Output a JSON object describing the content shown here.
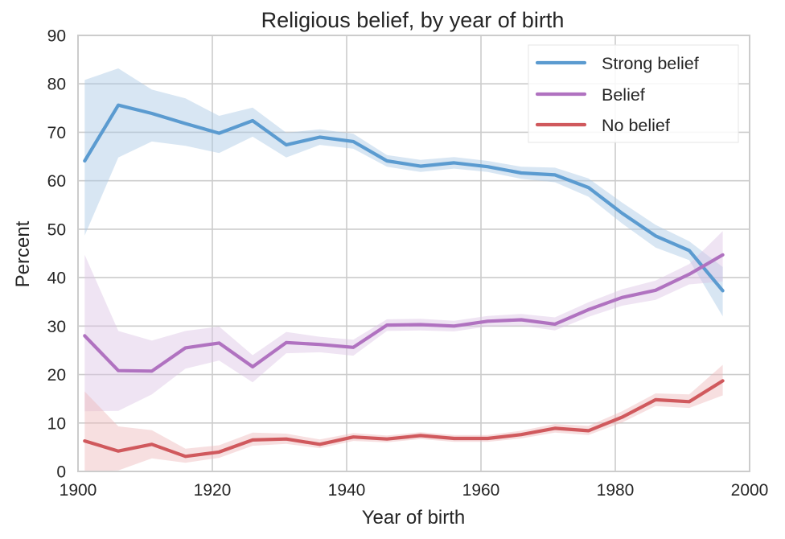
{
  "chart_data": {
    "type": "line",
    "title": "Religious belief, by year of birth",
    "xlabel": "Year of birth",
    "ylabel": "Percent",
    "xlim": [
      1900,
      2000
    ],
    "ylim": [
      0,
      90
    ],
    "xticks": [
      1900,
      1920,
      1940,
      1960,
      1980,
      2000
    ],
    "yticks": [
      0,
      10,
      20,
      30,
      40,
      50,
      60,
      70,
      80,
      90
    ],
    "grid": true,
    "legend_position": "top-right",
    "x": [
      1901,
      1906,
      1911,
      1916,
      1921,
      1926,
      1931,
      1936,
      1941,
      1946,
      1951,
      1956,
      1961,
      1966,
      1971,
      1976,
      1981,
      1986,
      1991,
      1996
    ],
    "series": [
      {
        "name": "Strong belief",
        "color": "#5b9bd0",
        "band_color": "#a9c8e5",
        "values": [
          64.1,
          75.6,
          73.9,
          71.8,
          69.8,
          72.4,
          67.4,
          69.0,
          68.1,
          64.1,
          63.0,
          63.7,
          62.9,
          61.6,
          61.2,
          58.6,
          53.3,
          48.6,
          45.6,
          37.3
        ],
        "lower": [
          48.7,
          64.8,
          68.1,
          67.2,
          65.7,
          69.1,
          64.8,
          67.4,
          66.6,
          62.9,
          61.8,
          62.5,
          61.8,
          60.4,
          59.7,
          56.7,
          51.2,
          46.2,
          43.6,
          32.0
        ],
        "upper": [
          80.8,
          83.2,
          78.8,
          77.0,
          73.4,
          75.1,
          69.9,
          70.6,
          69.7,
          65.3,
          64.3,
          64.9,
          64.1,
          62.9,
          62.7,
          60.5,
          55.5,
          50.9,
          47.5,
          42.2
        ]
      },
      {
        "name": "Belief",
        "color": "#b072c0",
        "band_color": "#dcc3e4",
        "values": [
          28.0,
          20.8,
          20.7,
          25.5,
          26.5,
          21.6,
          26.6,
          26.2,
          25.6,
          30.2,
          30.3,
          30.0,
          31.0,
          31.3,
          30.4,
          33.4,
          35.9,
          37.4,
          40.7,
          44.7
        ],
        "lower": [
          12.4,
          12.5,
          15.9,
          21.2,
          22.9,
          18.4,
          24.4,
          24.6,
          23.9,
          29.0,
          29.1,
          28.9,
          29.9,
          30.1,
          29.1,
          31.9,
          34.2,
          35.4,
          38.6,
          39.2
        ],
        "upper": [
          44.7,
          29.0,
          27.0,
          29.0,
          29.9,
          24.0,
          28.8,
          27.8,
          27.2,
          31.4,
          31.5,
          31.1,
          32.1,
          32.5,
          31.8,
          34.9,
          37.6,
          39.4,
          42.8,
          49.6
        ]
      },
      {
        "name": "No belief",
        "color": "#d0595d",
        "band_color": "#eeb9bb",
        "values": [
          6.3,
          4.2,
          5.6,
          3.1,
          4.0,
          6.5,
          6.7,
          5.6,
          7.1,
          6.7,
          7.4,
          6.8,
          6.8,
          7.6,
          8.9,
          8.4,
          11.2,
          14.8,
          14.4,
          18.7
        ],
        "lower": [
          0.0,
          0.2,
          2.7,
          1.8,
          2.8,
          5.3,
          5.7,
          4.8,
          6.3,
          6.0,
          6.7,
          6.1,
          6.1,
          6.8,
          8.0,
          7.5,
          10.1,
          13.5,
          13.1,
          15.7
        ],
        "upper": [
          16.5,
          9.3,
          8.5,
          4.7,
          5.4,
          8.0,
          7.8,
          6.6,
          7.9,
          7.4,
          8.1,
          7.5,
          7.5,
          8.4,
          9.8,
          9.4,
          12.4,
          16.1,
          15.9,
          22.0
        ]
      }
    ]
  }
}
